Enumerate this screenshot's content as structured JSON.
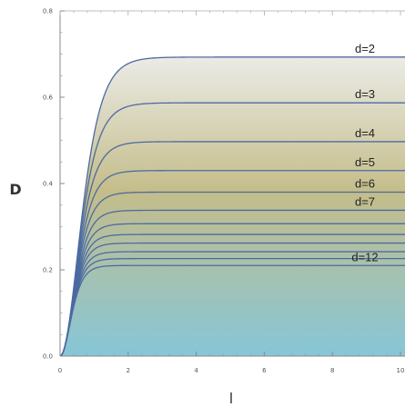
{
  "chart_data": {
    "type": "line",
    "xlabel": "l",
    "ylabel": "D",
    "xlim": [
      0,
      10
    ],
    "ylim": [
      0,
      0.8
    ],
    "x_ticks": [
      "0",
      "2",
      "4",
      "6",
      "8",
      "10"
    ],
    "y_ticks": [
      "0.0",
      "0.2",
      "0.4",
      "0.6",
      "0.8"
    ],
    "series": [
      {
        "name": "d=2",
        "plateau": 0.693
      },
      {
        "name": "d=3",
        "plateau": 0.587
      },
      {
        "name": "d=4",
        "plateau": 0.497
      },
      {
        "name": "d=5",
        "plateau": 0.43
      },
      {
        "name": "d=6",
        "plateau": 0.38
      },
      {
        "name": "d=7",
        "plateau": 0.338
      },
      {
        "name": "",
        "plateau": 0.307
      },
      {
        "name": "",
        "plateau": 0.282
      },
      {
        "name": "",
        "plateau": 0.262
      },
      {
        "name": "",
        "plateau": 0.242
      },
      {
        "name": "",
        "plateau": 0.226
      },
      {
        "name": "d=12",
        "plateau": 0.21
      }
    ],
    "grid": false,
    "colors": {
      "line": "#4d6aa0",
      "fill_top": "#ebebe6",
      "fill_mid": "#c4bd8a",
      "fill_bottom": "#86c6d8"
    }
  }
}
